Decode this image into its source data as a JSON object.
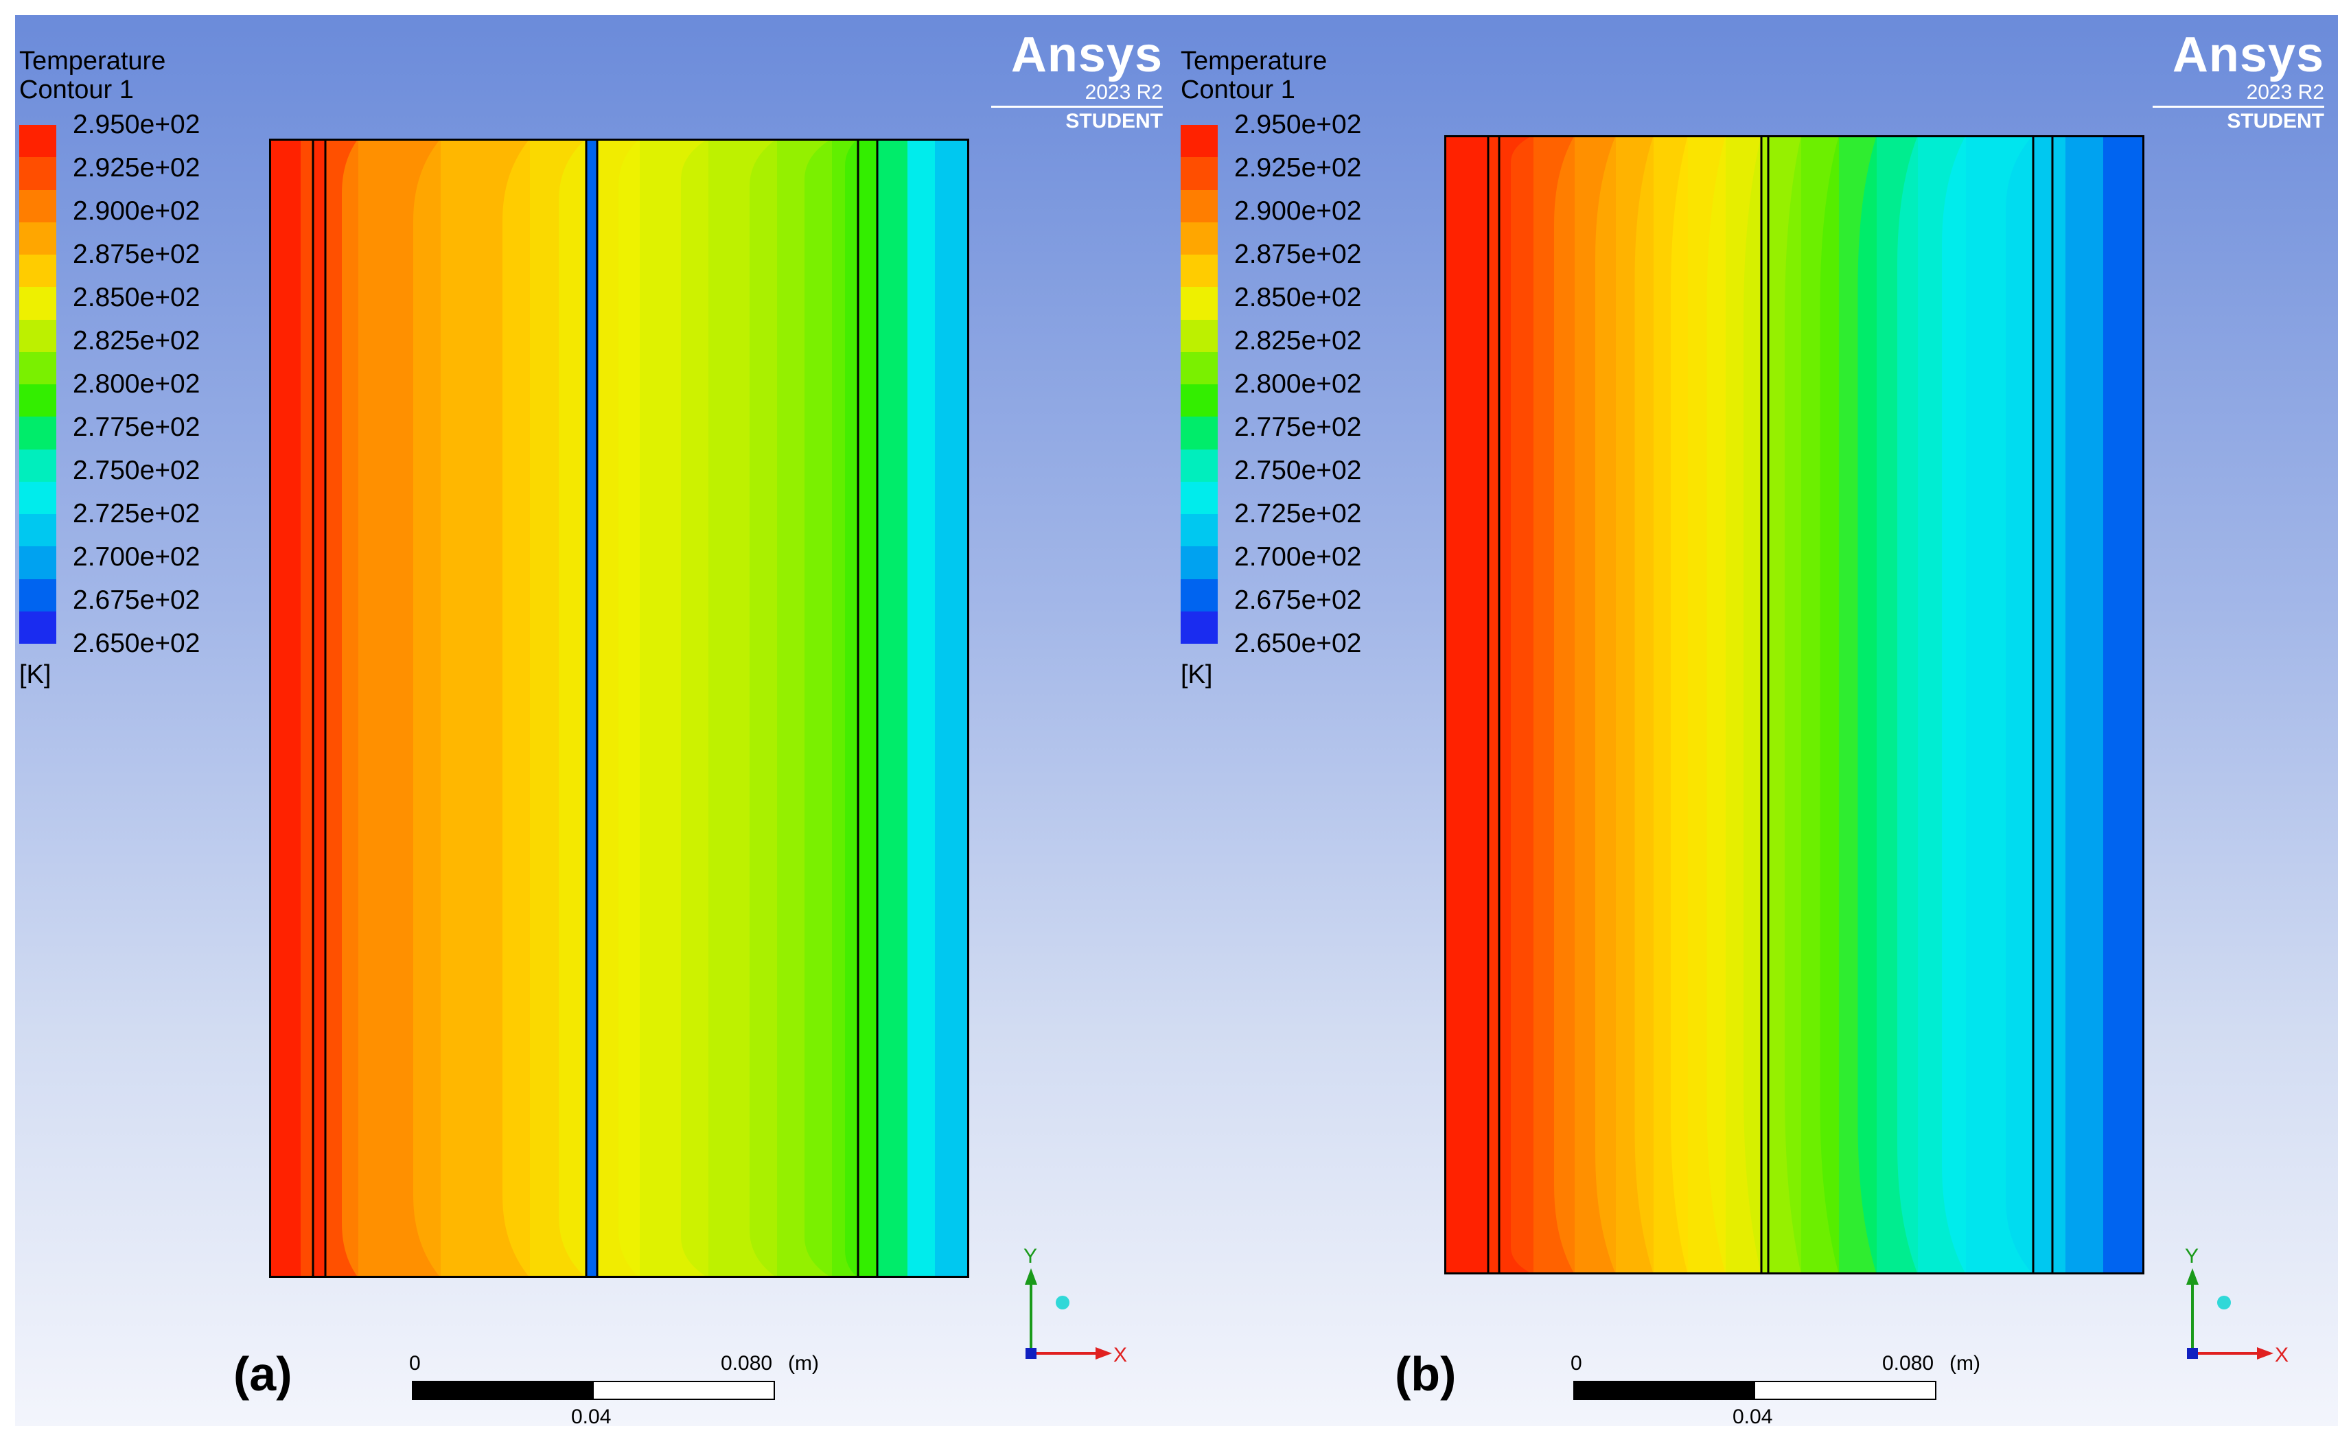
{
  "legend": {
    "title": "Temperature",
    "subtitle": "Contour 1",
    "unit": "[K]",
    "labels": [
      "2.950e+02",
      "2.925e+02",
      "2.900e+02",
      "2.875e+02",
      "2.850e+02",
      "2.825e+02",
      "2.800e+02",
      "2.775e+02",
      "2.750e+02",
      "2.725e+02",
      "2.700e+02",
      "2.675e+02",
      "2.650e+02"
    ],
    "colors": [
      "#ff2200",
      "#ff4e00",
      "#ff7e00",
      "#ffa600",
      "#ffcc00",
      "#eef000",
      "#bdf000",
      "#7af000",
      "#33ee00",
      "#00ec6a",
      "#00eebd",
      "#00ecec",
      "#00c8f0",
      "#00a2f0",
      "#0064f0",
      "#1a2cf0"
    ]
  },
  "logo": {
    "name": "Ansys",
    "version": "2023 R2",
    "edition": "STUDENT"
  },
  "panels": [
    {
      "label": "(a)",
      "contour_colors": [
        "#ff2200",
        "#ff4a00",
        "#ff2a00",
        "#ff7e00",
        "#ffa600",
        "#ffcc00",
        "#f4e800",
        "#eef200",
        "#cdf200",
        "#aaf000",
        "#7af000",
        "#44ee00",
        "#33ee00",
        "#00ec6a",
        "#00ecec",
        "#00c8f0",
        "#0064f0"
      ]
    },
    {
      "label": "(b)",
      "contour_colors": [
        "#ff2200",
        "#ff4a00",
        "#ff7e00",
        "#ffa600",
        "#ffc400",
        "#ffdf00",
        "#f4ec00",
        "#d6f000",
        "#a8f000",
        "#80f000",
        "#55ee00",
        "#00ec6a",
        "#00eebd",
        "#00ecec",
        "#00dcf0",
        "#00c8f0",
        "#00a2f0",
        "#0064f0",
        "#1a2cf0"
      ]
    }
  ],
  "scale_bar": {
    "zero": "0",
    "max": "0.080",
    "unit": "(m)",
    "mid": "0.04"
  },
  "axis_triad": {
    "y": "Y",
    "x": "X"
  }
}
